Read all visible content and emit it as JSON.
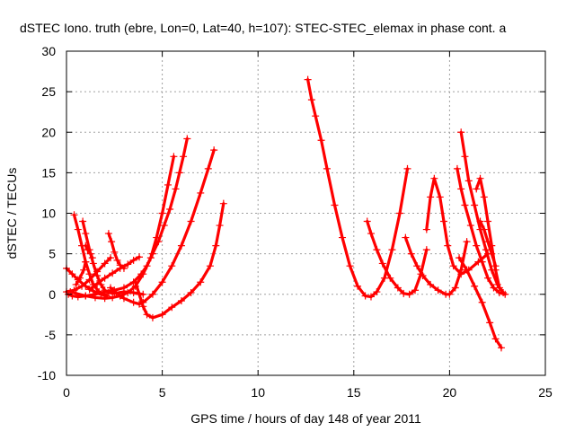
{
  "chart_data": {
    "type": "scatter",
    "title": "dSTEC Iono. truth (ebre, Lon=0, Lat=40, h=107): STEC-STEC_elemax in phase cont. a",
    "xlabel": "GPS time / hours of day 148 of year 2011",
    "ylabel": "dSTEC  / TECUs",
    "xlim": [
      0,
      25
    ],
    "ylim": [
      -10,
      30
    ],
    "xticks": [
      0,
      5,
      10,
      15,
      20,
      25
    ],
    "yticks": [
      -10,
      -5,
      0,
      5,
      10,
      15,
      20,
      25,
      30
    ],
    "grid": true,
    "marker": "plus",
    "color": "#ff0000",
    "series": [
      {
        "x": [
          0.0,
          0.3,
          0.6,
          1.0,
          1.4,
          1.8,
          2.1
        ],
        "y": [
          3.2,
          2.5,
          1.8,
          1.0,
          0.4,
          0.0,
          -0.2
        ]
      },
      {
        "x": [
          0.4,
          0.6,
          0.8,
          1.0,
          1.2,
          1.4,
          1.7,
          2.0
        ],
        "y": [
          9.8,
          8.0,
          6.0,
          4.0,
          2.5,
          1.2,
          0.3,
          0.0
        ]
      },
      {
        "x": [
          0.85,
          1.0,
          1.2,
          1.4,
          1.6,
          1.8,
          2.0,
          2.2,
          2.5,
          3.0,
          3.5,
          4.0
        ],
        "y": [
          9.0,
          7.5,
          5.5,
          3.8,
          2.3,
          1.2,
          0.5,
          0.2,
          0.1,
          0.3,
          0.2,
          0.0
        ]
      },
      {
        "x": [
          1.0,
          1.1,
          1.25,
          1.35
        ],
        "y": [
          6.0,
          5.5,
          5.0,
          4.5
        ]
      },
      {
        "x": [
          0.0,
          0.4,
          0.8,
          1.2,
          1.6,
          2.0,
          2.3
        ],
        "y": [
          0.3,
          0.5,
          1.0,
          1.8,
          2.8,
          3.8,
          4.5
        ]
      },
      {
        "x": [
          0.5,
          0.7,
          0.9,
          1.0
        ],
        "y": [
          1.2,
          2.0,
          3.0,
          4.0
        ]
      },
      {
        "x": [
          2.2,
          2.35,
          2.5,
          2.65,
          2.8,
          3.0
        ],
        "y": [
          7.5,
          6.5,
          5.2,
          4.2,
          3.6,
          3.2
        ]
      },
      {
        "x": [
          1.2,
          1.6,
          2.0,
          2.4,
          2.8,
          3.2,
          3.5,
          3.8
        ],
        "y": [
          0.6,
          1.3,
          2.0,
          2.6,
          3.2,
          3.7,
          4.2,
          4.6
        ]
      },
      {
        "x": [
          0.1,
          0.3,
          0.6,
          1.0,
          1.5,
          2.0,
          2.5,
          3.0,
          3.5,
          3.9,
          4.2,
          4.5,
          4.8,
          5.1,
          5.4,
          5.7,
          5.9,
          6.1,
          6.3
        ],
        "y": [
          0.0,
          -0.2,
          -0.3,
          -0.2,
          0.0,
          0.3,
          0.5,
          0.8,
          1.5,
          2.5,
          3.5,
          5.0,
          6.5,
          8.5,
          10.5,
          13.0,
          15.0,
          17.0,
          19.2
        ]
      },
      {
        "x": [
          0.2,
          0.5,
          1.0,
          1.5,
          2.0,
          2.4,
          2.8,
          3.2,
          3.6,
          4.0,
          4.4,
          4.7,
          5.0,
          5.3,
          5.6
        ],
        "y": [
          0.3,
          0.1,
          -0.2,
          -0.4,
          -0.5,
          -0.4,
          -0.2,
          0.2,
          1.0,
          2.5,
          4.5,
          7.0,
          10.0,
          13.5,
          17.0
        ]
      },
      {
        "x": [
          2.3,
          2.6,
          3.0,
          3.5,
          3.8,
          4.0,
          4.5,
          5.0,
          5.5,
          6.0,
          6.5,
          7.0,
          7.4,
          7.7
        ],
        "y": [
          0.8,
          0.2,
          -0.5,
          -1.0,
          -1.2,
          -1.0,
          0.0,
          1.5,
          3.5,
          6.0,
          9.0,
          12.5,
          15.5,
          17.8
        ]
      },
      {
        "x": [
          3.6,
          3.8,
          4.0,
          4.2,
          4.5,
          5.0,
          5.5,
          6.0,
          6.5,
          7.0,
          7.5,
          7.8,
          8.0,
          8.2
        ],
        "y": [
          1.5,
          0.0,
          -1.5,
          -2.5,
          -2.9,
          -2.5,
          -1.6,
          -0.8,
          0.2,
          1.5,
          3.5,
          6.0,
          8.5,
          11.2
        ]
      },
      {
        "x": [
          12.6,
          12.8,
          13.0,
          13.3,
          13.6,
          14.0,
          14.4,
          14.8,
          15.2,
          15.6,
          15.9,
          16.2,
          16.6,
          17.0,
          17.4,
          17.8
        ],
        "y": [
          26.5,
          24.0,
          22.0,
          19.0,
          15.5,
          11.0,
          7.0,
          3.5,
          1.0,
          -0.2,
          -0.3,
          0.3,
          2.0,
          5.5,
          10.0,
          15.5
        ]
      },
      {
        "x": [
          15.7,
          15.9,
          16.2,
          16.5,
          16.9,
          17.3,
          17.6,
          17.9,
          18.2,
          18.5,
          18.8
        ],
        "y": [
          9.0,
          7.5,
          5.5,
          3.8,
          2.0,
          0.8,
          0.1,
          0.0,
          0.5,
          2.5,
          5.5
        ]
      },
      {
        "x": [
          17.7,
          18.0,
          18.3,
          18.6,
          19.0,
          19.4,
          19.8,
          20.0,
          20.3,
          20.6,
          20.9
        ],
        "y": [
          7.0,
          5.0,
          3.5,
          2.3,
          1.2,
          0.5,
          0.0,
          0.0,
          0.8,
          3.0,
          6.5
        ]
      },
      {
        "x": [
          18.8,
          19.0,
          19.2,
          19.5,
          19.7,
          19.9,
          20.2,
          20.6,
          21.0,
          21.5,
          22.0
        ],
        "y": [
          8.0,
          12.0,
          14.3,
          12.0,
          9.0,
          6.0,
          3.5,
          2.5,
          3.0,
          4.0,
          5.0
        ]
      },
      {
        "x": [
          20.4,
          20.6,
          20.8,
          21.1,
          21.4,
          21.7,
          22.0,
          22.3,
          22.6,
          22.9
        ],
        "y": [
          15.5,
          13.0,
          11.0,
          8.5,
          6.0,
          4.0,
          2.0,
          0.8,
          0.2,
          0.0
        ]
      },
      {
        "x": [
          20.6,
          20.8,
          21.0,
          21.3,
          21.6,
          21.9,
          22.2,
          22.5,
          22.8
        ],
        "y": [
          20.0,
          17.0,
          14.0,
          11.0,
          8.0,
          5.5,
          3.0,
          1.2,
          0.2
        ]
      },
      {
        "x": [
          20.5,
          20.9,
          21.3,
          21.7,
          22.1,
          22.4,
          22.7
        ],
        "y": [
          4.5,
          3.0,
          1.0,
          -1.0,
          -3.5,
          -5.5,
          -6.6
        ]
      },
      {
        "x": [
          21.4,
          21.6,
          21.8,
          22.0,
          22.2,
          22.4,
          22.6
        ],
        "y": [
          13.0,
          14.3,
          12.0,
          9.0,
          6.0,
          3.0,
          0.8
        ]
      },
      {
        "x": [
          21.6,
          21.8,
          22.0,
          22.2,
          22.4
        ],
        "y": [
          9.0,
          8.0,
          6.5,
          5.0,
          3.5
        ]
      }
    ]
  }
}
